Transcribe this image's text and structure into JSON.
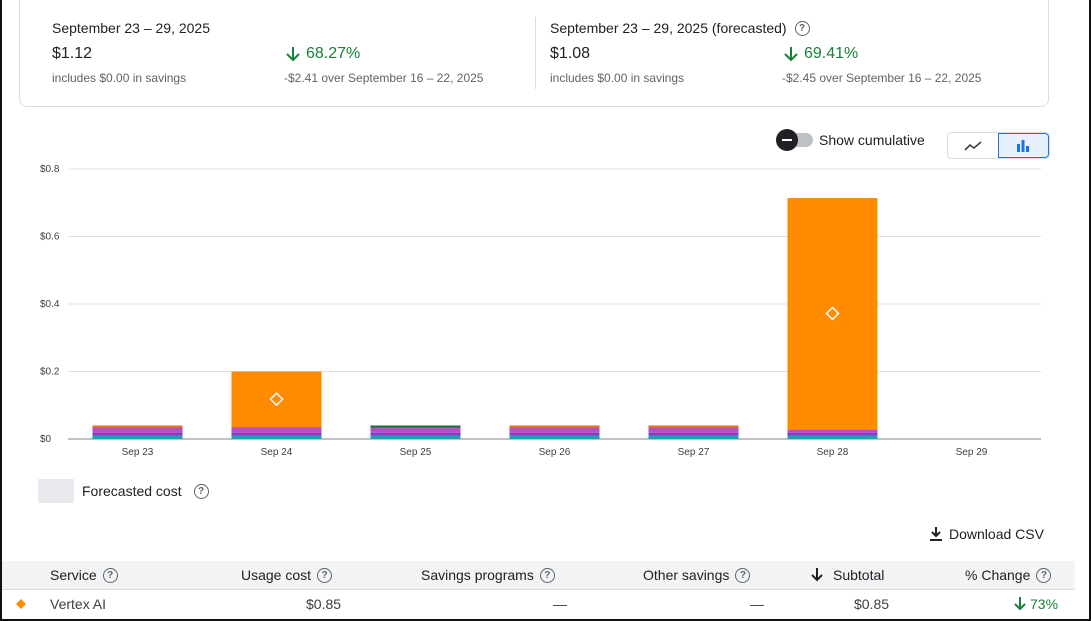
{
  "summary": {
    "actual": {
      "title": "September 23 – 29, 2025",
      "amount": "$1.12",
      "savings_note": "includes $0.00 in savings",
      "change_pct": "68.27%",
      "change_note": "-$2.41 over September 16 – 22, 2025"
    },
    "forecast": {
      "title": "September 23 – 29, 2025 (forecasted)",
      "amount": "$1.08",
      "savings_note": "includes $0.00 in savings",
      "change_pct": "69.41%",
      "change_note": "-$2.45 over September 16 – 22, 2025"
    },
    "change_color": "#188038"
  },
  "controls": {
    "cumulative_label": "Show cumulative",
    "cumulative_on": false,
    "chart_type_selected": "bar",
    "line_icon": "line-chart-icon",
    "bar_icon": "bar-chart-icon"
  },
  "legend": {
    "forecasted_label": "Forecasted cost"
  },
  "download": {
    "label": "Download CSV",
    "icon": "download-icon"
  },
  "chart_data": {
    "type": "bar",
    "stacked": true,
    "categories": [
      "Sep 23",
      "Sep 24",
      "Sep 25",
      "Sep 26",
      "Sep 27",
      "Sep 28",
      "Sep 29"
    ],
    "y_ticks": [
      "$0",
      "$0.2",
      "$0.4",
      "$0.6",
      "$0.8"
    ],
    "ylim": [
      0,
      0.8
    ],
    "grid": true,
    "series": [
      {
        "color": "#12a4af",
        "values": [
          0.01,
          0.01,
          0.01,
          0.01,
          0.01,
          0.01,
          0
        ]
      },
      {
        "color": "#7b3fc4",
        "values": [
          0.008,
          0.008,
          0.008,
          0.008,
          0.008,
          0.008,
          0
        ]
      },
      {
        "color": "#b54ec7",
        "values": [
          0.016,
          0.016,
          0.016,
          0.016,
          0.016,
          0.009,
          0
        ]
      },
      {
        "color": "#e8710a",
        "values": [
          0.006,
          0.003,
          0,
          0.006,
          0.006,
          0.001,
          0
        ]
      },
      {
        "color": "#ff8b00",
        "values": [
          0,
          0.163,
          0,
          0,
          0,
          0.686,
          0
        ]
      },
      {
        "color": "#137333",
        "values": [
          0,
          0,
          0.006,
          0,
          0,
          0,
          0
        ]
      }
    ],
    "markers": [
      {
        "category": "Sep 24",
        "y": 0.118
      },
      {
        "category": "Sep 28",
        "y": 0.372
      }
    ],
    "marker_color": "#ffffff"
  },
  "table": {
    "headers": {
      "service": "Service",
      "usage_cost": "Usage cost",
      "savings_programs": "Savings programs",
      "other_savings": "Other savings",
      "subtotal": "Subtotal",
      "pct_change": "% Change"
    },
    "rows": [
      {
        "marker_color": "#ff8b00",
        "service": "Vertex AI",
        "usage_cost": "$0.85",
        "savings_programs": "—",
        "other_savings": "—",
        "subtotal": "$0.85",
        "pct_change": "73%"
      }
    ]
  }
}
